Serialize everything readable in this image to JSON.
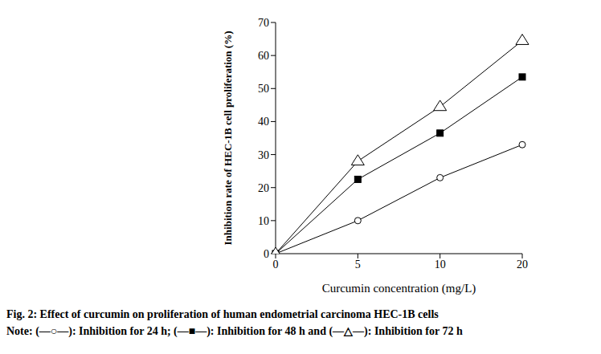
{
  "chart_data": {
    "type": "line",
    "title": "Fig. 2: Effect of curcumin on proliferation of human endometrial carcinoma HEC-1B cells",
    "note": "Note: (—○—): Inhibition for 24 h; (—■—): Inhibition for 48 h and (—△—): Inhibition for 72 h",
    "x_label": "Curcumin concentration (mg/L)",
    "y_label": "Inhibition rate of HEC-1B cell proliferation (%)",
    "categories": [
      "0",
      "5",
      "10",
      "20"
    ],
    "ylim": [
      0,
      70
    ],
    "yticks": [
      0,
      10,
      20,
      30,
      40,
      50,
      60,
      70
    ],
    "grid": false,
    "series": [
      {
        "name": "Inhibition for 24 h",
        "color": "#000000",
        "marker": "circle",
        "values": [
          0,
          10,
          23,
          33
        ]
      },
      {
        "name": "Inhibition for 48 h",
        "color": "#000000",
        "marker": "square",
        "values": [
          0,
          22.5,
          36.5,
          53.5
        ]
      },
      {
        "name": "Inhibition for 72 h",
        "color": "#000000",
        "marker": "triangle",
        "values": [
          0,
          28,
          44.5,
          64.5
        ]
      }
    ]
  }
}
